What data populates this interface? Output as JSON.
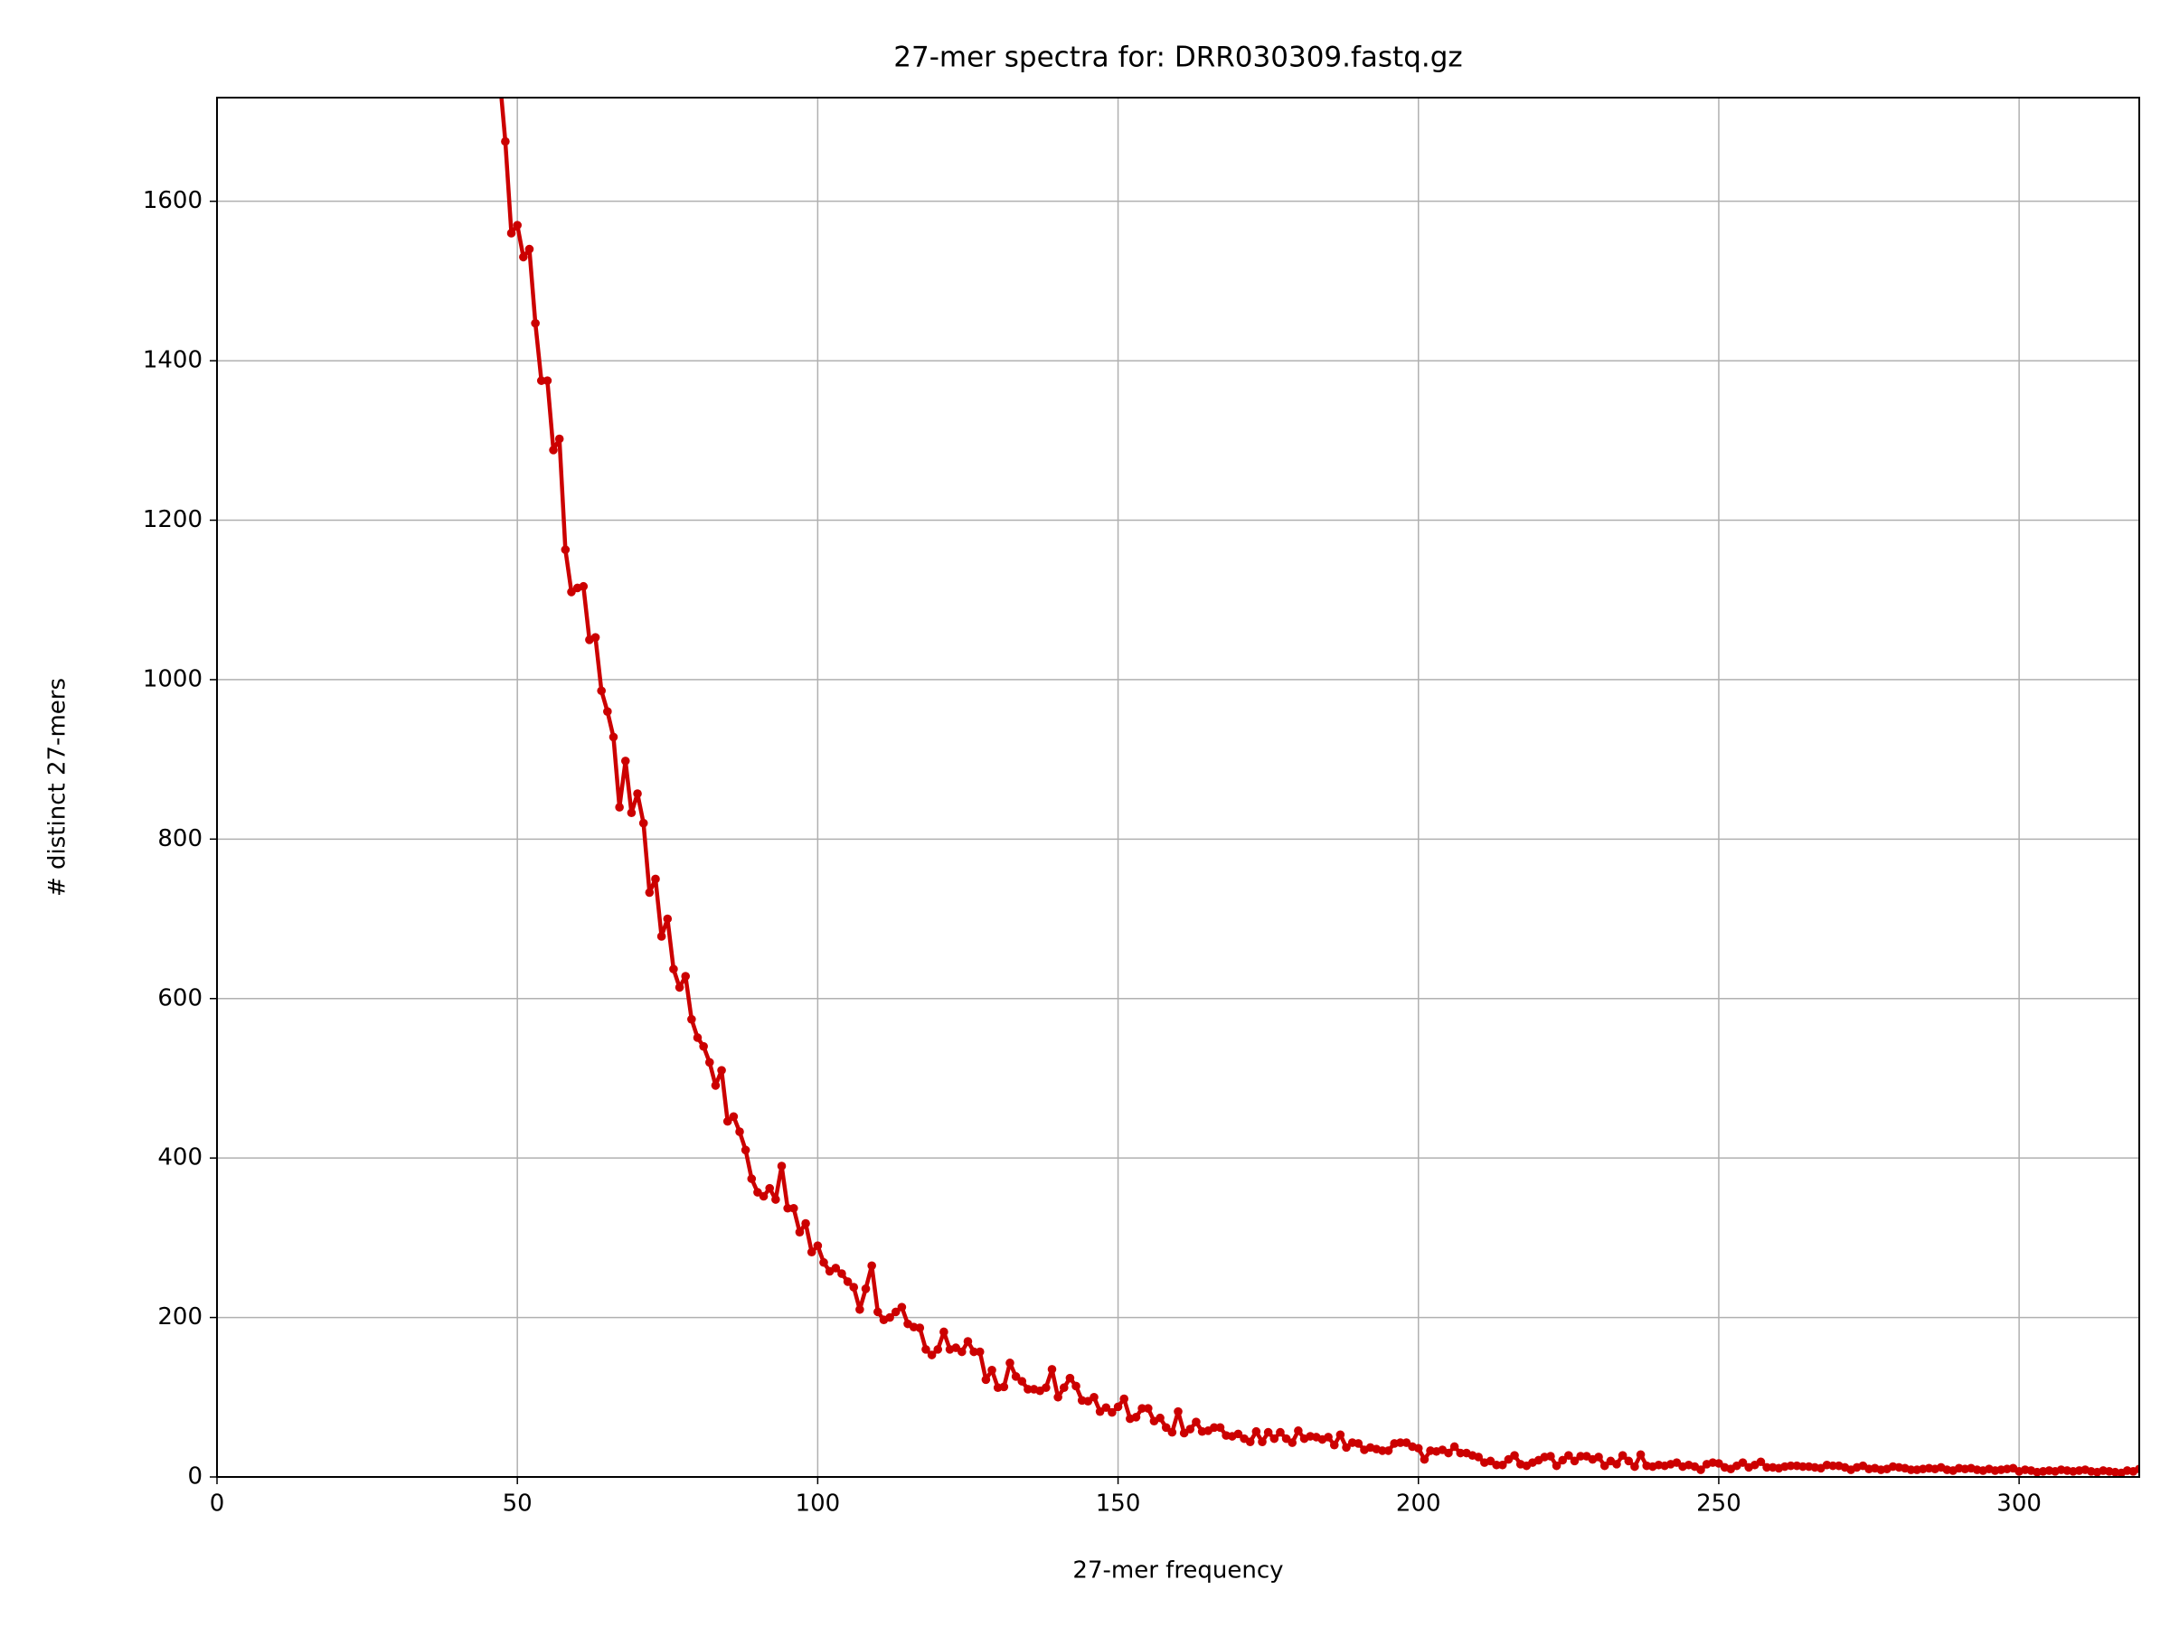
{
  "chart_data": {
    "type": "line",
    "title": "27-mer spectra for: DRR030309.fastq.gz",
    "xlabel": "27-mer frequency",
    "ylabel": "# distinct 27-mers",
    "x": [
      47,
      48,
      49,
      50,
      51,
      52,
      53,
      54,
      55,
      56,
      57,
      58,
      59,
      60,
      61,
      62,
      63,
      64,
      65,
      66,
      67,
      68,
      69,
      70,
      71,
      72,
      73,
      74,
      75,
      76,
      77,
      78,
      79,
      80,
      81,
      82,
      83,
      84,
      85,
      86,
      87,
      88,
      89,
      90,
      91,
      92,
      93,
      94,
      95,
      96,
      97,
      98,
      99,
      100,
      101,
      102,
      103,
      104,
      105,
      106,
      107,
      108,
      109,
      110,
      111,
      112,
      113,
      114,
      115,
      116,
      117,
      118,
      119,
      120,
      121,
      122,
      123,
      124,
      125,
      126,
      127,
      128,
      129,
      130,
      131,
      132,
      133,
      134,
      135,
      136,
      137,
      138,
      139,
      140,
      141,
      142,
      143,
      144,
      145,
      146,
      147,
      148,
      149,
      150,
      151,
      152,
      153,
      154,
      155,
      156,
      157,
      158,
      159,
      160,
      161,
      162,
      163,
      164,
      165,
      166,
      167,
      168,
      169,
      170,
      171,
      172,
      173,
      174,
      175,
      176,
      177,
      178,
      179,
      180,
      181,
      182,
      183,
      184,
      185,
      186,
      187,
      188,
      189,
      190,
      191,
      192,
      193,
      194,
      195,
      196,
      197,
      198,
      199,
      200,
      201,
      202,
      203,
      204,
      205,
      206,
      207,
      208,
      209,
      210,
      211,
      212,
      213,
      214,
      215,
      216,
      217,
      218,
      219,
      220,
      221,
      222,
      223,
      224,
      225,
      226,
      227,
      228,
      229,
      230,
      231,
      232,
      233,
      234,
      235,
      236,
      237,
      238,
      239,
      240,
      241,
      242,
      243,
      244,
      245,
      246,
      247,
      248,
      249,
      250,
      251,
      252,
      253,
      254,
      255,
      256,
      257,
      258,
      259,
      260,
      261,
      262,
      263,
      264,
      265,
      266,
      267,
      268,
      269,
      270,
      271,
      272,
      273,
      274,
      275,
      276,
      277,
      278,
      279,
      280,
      281,
      282,
      283,
      284,
      285,
      286,
      287,
      288,
      289,
      290,
      291,
      292,
      293,
      294,
      295,
      296,
      297,
      298,
      299,
      300,
      301,
      302,
      303,
      304,
      305,
      306,
      307,
      308,
      309,
      310,
      311,
      312,
      313,
      314,
      315,
      316,
      317,
      318,
      319,
      320
    ],
    "series": [
      {
        "color": "#cc0000",
        "values": [
          1760,
          1675,
          1560,
          1570,
          1530,
          1540,
          1447,
          1375,
          1375,
          1288,
          1302,
          1163,
          1110,
          1115,
          1117,
          1050,
          1053,
          986,
          960,
          928,
          840,
          898,
          833,
          857,
          820,
          733,
          750,
          678,
          700,
          637,
          614,
          628,
          574,
          551,
          540,
          520,
          491,
          510,
          446,
          452,
          433,
          410,
          374,
          357,
          352,
          362,
          348,
          390,
          337,
          337,
          307,
          318,
          282,
          290,
          269,
          258,
          262,
          255,
          245,
          238,
          210,
          236,
          265,
          207,
          197,
          200,
          207,
          213,
          192,
          188,
          187,
          160,
          153,
          160,
          182,
          160,
          162,
          157,
          170,
          157,
          157,
          122,
          134,
          112,
          113,
          143,
          126,
          120,
          110,
          110,
          108,
          112,
          135,
          100,
          112,
          124,
          114,
          96,
          95,
          100,
          82,
          87,
          81,
          88,
          98,
          73,
          75,
          86,
          86,
          70,
          74,
          62,
          56,
          82,
          55,
          60,
          69,
          57,
          58,
          62,
          62,
          52,
          51,
          54,
          48,
          44,
          57,
          44,
          56,
          48,
          56,
          48,
          43,
          58,
          48,
          51,
          50,
          47,
          50,
          40,
          53,
          37,
          43,
          42,
          34,
          37,
          35,
          33,
          33,
          42,
          43,
          43,
          38,
          36,
          22,
          33,
          32,
          34,
          30,
          38,
          30,
          30,
          27,
          25,
          18,
          20,
          15,
          15,
          22,
          27,
          16,
          14,
          18,
          21,
          25,
          26,
          14,
          21,
          27,
          20,
          26,
          26,
          22,
          25,
          14,
          20,
          16,
          27,
          20,
          13,
          28,
          14,
          13,
          15,
          14,
          16,
          18,
          13,
          15,
          13,
          9,
          16,
          18,
          17,
          12,
          10,
          14,
          18,
          12,
          15,
          19,
          12,
          12,
          11,
          13,
          14,
          14,
          13,
          13,
          12,
          11,
          15,
          14,
          14,
          12,
          9,
          12,
          14,
          10,
          11,
          9,
          10,
          13,
          12,
          11,
          9,
          9,
          10,
          11,
          10,
          12,
          9,
          8,
          11,
          10,
          11,
          9,
          8,
          10,
          8,
          9,
          10,
          11,
          7,
          9,
          8,
          6,
          7,
          8,
          7,
          9,
          8,
          7,
          8,
          9,
          7,
          6,
          8,
          7,
          6,
          5,
          8,
          7,
          10
        ]
      }
    ],
    "xlim": [
      0,
      320
    ],
    "ylim": [
      0,
      1730
    ],
    "xticks": [
      0,
      50,
      100,
      150,
      200,
      250,
      300
    ],
    "yticks": [
      0,
      200,
      400,
      600,
      800,
      1000,
      1200,
      1400,
      1600
    ],
    "grid": true
  }
}
